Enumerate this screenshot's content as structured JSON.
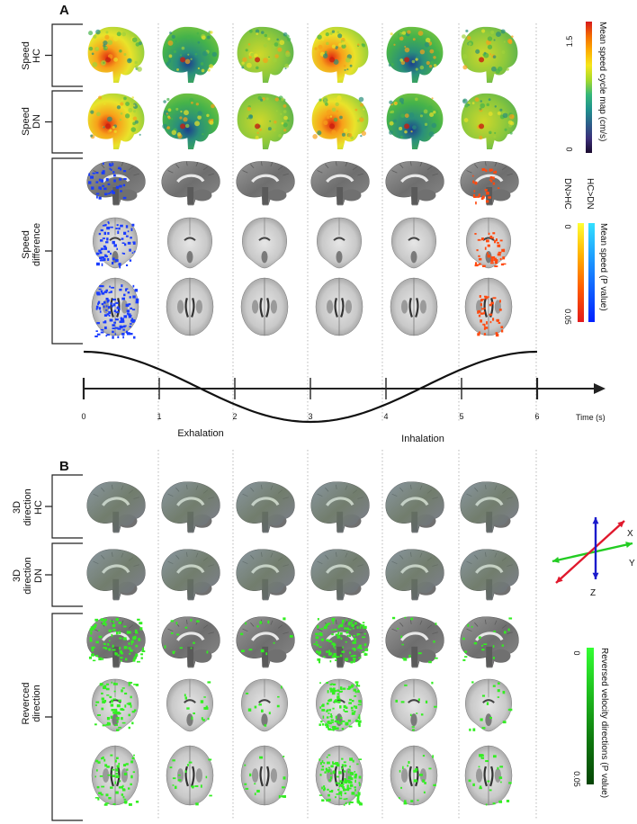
{
  "panels": {
    "a_letter": "A",
    "b_letter": "B"
  },
  "panel_a": {
    "rows": {
      "speed_hc": [
        "Speed",
        "HC"
      ],
      "speed_dn": [
        "Speed",
        "DN"
      ],
      "speed_diff": [
        "Speed",
        "difference"
      ]
    },
    "colorbar_speed": {
      "label": "Mean speed cycle map (cm/s)",
      "top": "1.5",
      "bottom": "0",
      "colors": [
        "#d7191c",
        "#f46d00",
        "#fdae00",
        "#f6e61b",
        "#a6d92a",
        "#35b779",
        "#1f918d",
        "#2c5f8a",
        "#3b2f7a",
        "#1a0a2e"
      ]
    },
    "colorbar_pvalue": {
      "label": "Mean speed (P value)",
      "left_label": "DN>HC",
      "right_label": "HC>DN",
      "top": "0",
      "bottom": "0.05",
      "warm_colors": [
        "#ffff33",
        "#ffb000",
        "#ff5a00",
        "#e31a1c"
      ],
      "cool_colors": [
        "#33e0ff",
        "#1ea0ff",
        "#1060ff",
        "#0020ff"
      ]
    }
  },
  "timeline": {
    "ticks": [
      "0",
      "1",
      "2",
      "3",
      "4",
      "5",
      "6"
    ],
    "unit_label": "Time (s)",
    "phases": [
      "Exhalation",
      "Inhalation"
    ]
  },
  "panel_b": {
    "rows": {
      "dir_hc": [
        "3D",
        "direction",
        "HC"
      ],
      "dir_dn": [
        "3D",
        "direction",
        "DN"
      ],
      "reversed": [
        "Reverced",
        "direction"
      ]
    },
    "axes_icon": {
      "x": "X",
      "y": "Y",
      "z": "Z",
      "colors": {
        "x": "#e0192d",
        "y": "#22cc22",
        "z": "#1a1acc"
      }
    },
    "colorbar_reversed": {
      "label": "Reversed velocity directions (P value)",
      "top": "0",
      "bottom": "0.05",
      "colors": [
        "#33ff33",
        "#1ebe1e",
        "#0e7a0e",
        "#064406"
      ]
    }
  },
  "colors": {
    "brain_grey": "#8f8f8f",
    "sig_blue": "#1a3cff",
    "sig_orange": "#ff4a10",
    "sig_green": "#33ee22"
  }
}
